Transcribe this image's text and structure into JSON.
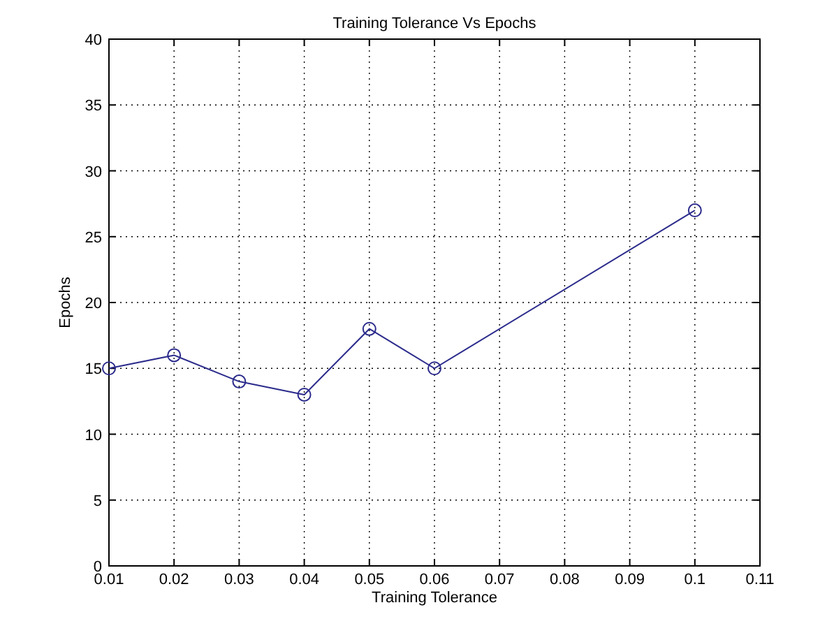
{
  "chart_data": {
    "type": "line",
    "title": "Training Tolerance Vs Epochs",
    "xlabel": "Training Tolerance",
    "ylabel": "Epochs",
    "x": [
      0.01,
      0.02,
      0.03,
      0.04,
      0.05,
      0.06,
      0.1
    ],
    "series": [
      {
        "color": "#2b2b8c",
        "values": [
          15,
          16,
          14,
          13,
          18,
          15,
          27
        ]
      }
    ],
    "xlim": [
      0.01,
      0.11
    ],
    "xticks": [
      0.01,
      0.02,
      0.03,
      0.04,
      0.05,
      0.06,
      0.07,
      0.08,
      0.09,
      0.1,
      0.11
    ],
    "ylim": [
      0,
      40
    ],
    "yticks": [
      0,
      5,
      10,
      15,
      20,
      25,
      30,
      35,
      40
    ],
    "grid": true,
    "marker": "circle",
    "line_style": "solid"
  }
}
